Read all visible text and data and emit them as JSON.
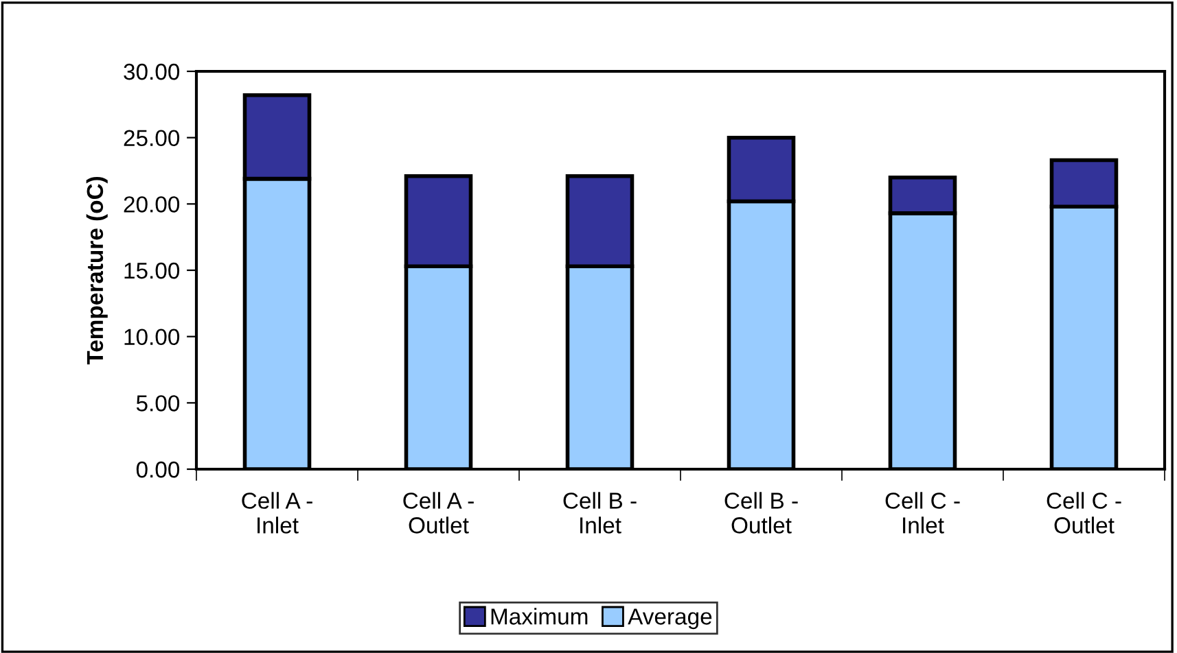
{
  "chart_data": {
    "type": "bar",
    "stacked": true,
    "ylabel": "Temperature (oC)",
    "categories": [
      "Cell A -\nInlet",
      "Cell A -\nOutlet",
      "Cell B -\nInlet",
      "Cell B -\nOutlet",
      "Cell C -\nInlet",
      "Cell C -\nOutlet"
    ],
    "series": [
      {
        "name": "Average",
        "color": "#99ccff",
        "values": [
          21.9,
          15.3,
          15.3,
          20.2,
          19.3,
          19.8
        ]
      },
      {
        "name": "Maximum",
        "color": "#333399",
        "values": [
          6.3,
          6.8,
          6.8,
          4.8,
          2.7,
          3.5
        ]
      }
    ],
    "ylim": [
      0,
      30
    ],
    "yticks": [
      {
        "value": 0,
        "label": "0.00"
      },
      {
        "value": 5,
        "label": "5.00"
      },
      {
        "value": 10,
        "label": "10.00"
      },
      {
        "value": 15,
        "label": "15.00"
      },
      {
        "value": 20,
        "label": "20.00"
      },
      {
        "value": 25,
        "label": "25.00"
      },
      {
        "value": 30,
        "label": "30.00"
      }
    ],
    "grid": false,
    "legend": "bottom"
  }
}
